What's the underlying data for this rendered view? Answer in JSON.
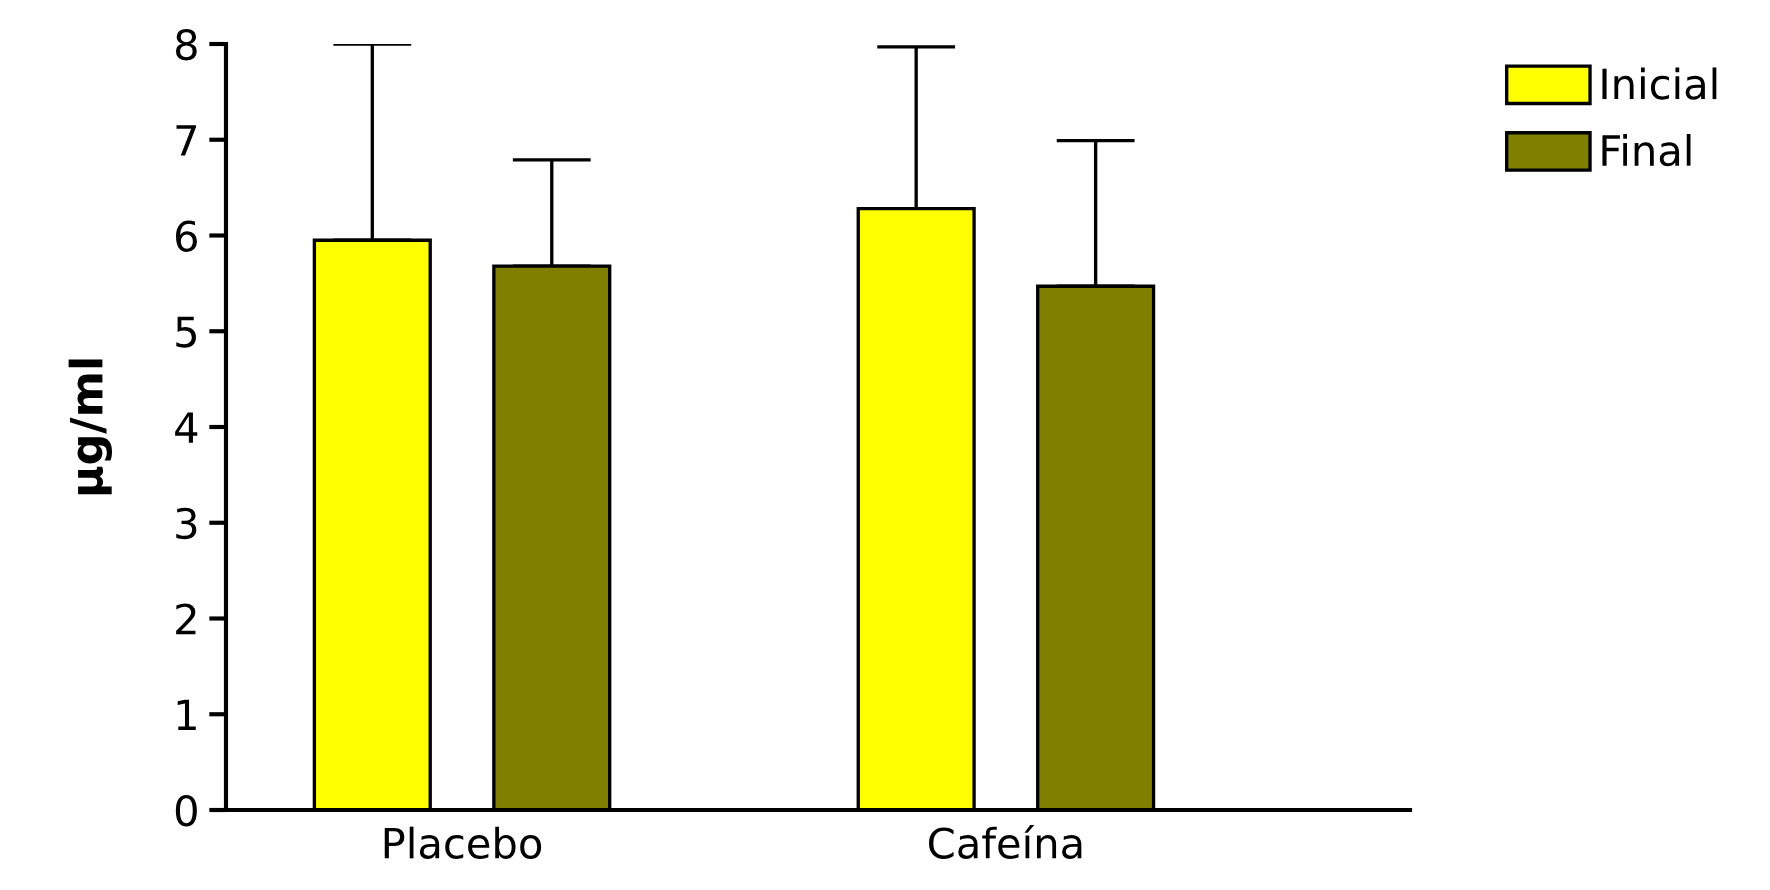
{
  "chart_data": {
    "type": "bar",
    "ylabel": "µg/ml",
    "categories": [
      "Placebo",
      "Cafeína"
    ],
    "series": [
      {
        "name": "Inicial",
        "color": "#ffff00",
        "values": [
          5.95,
          6.28
        ],
        "errors": [
          [
            5.95,
            8.0
          ],
          [
            6.28,
            7.97
          ]
        ]
      },
      {
        "name": "Final",
        "color": "#808000",
        "values": [
          5.68,
          5.47
        ],
        "errors": [
          [
            5.68,
            6.79
          ],
          [
            5.47,
            6.99
          ]
        ]
      }
    ],
    "ylim": [
      0,
      8
    ],
    "yticks": [
      0,
      1,
      2,
      3,
      4,
      5,
      6,
      7,
      8
    ],
    "grid": false,
    "legend": "top right"
  }
}
